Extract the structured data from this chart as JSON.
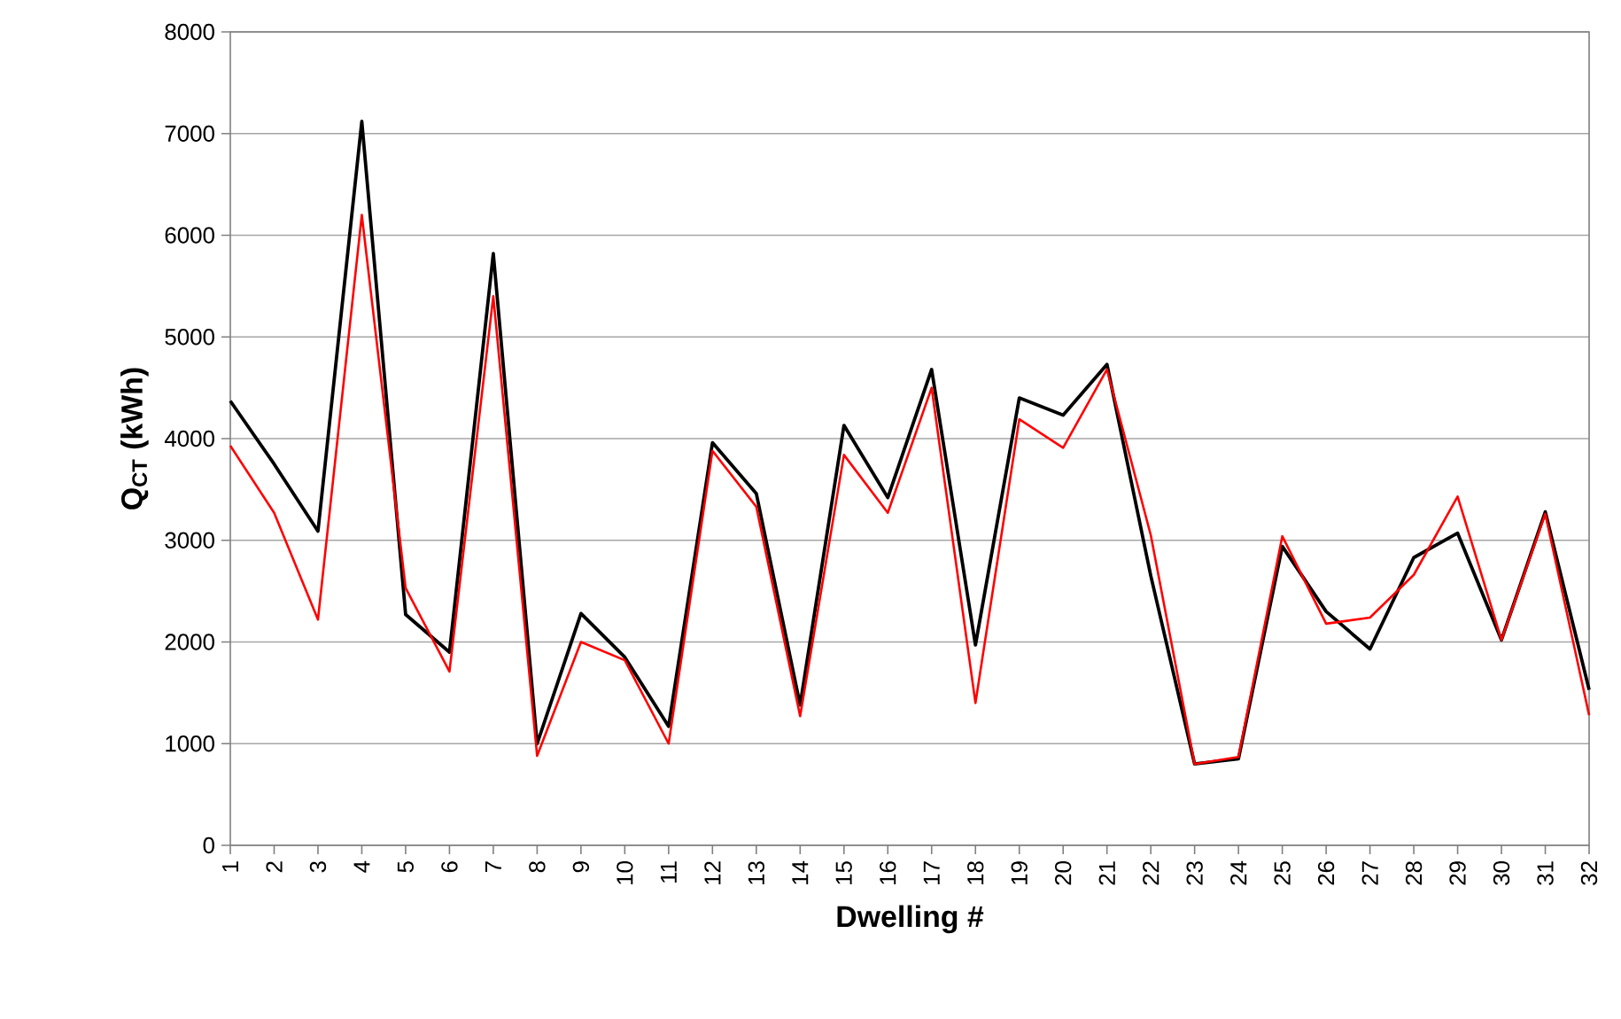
{
  "chart_data": {
    "type": "line",
    "xlabel": "Dwelling #",
    "ylabel": "Q$_{CT}$ (kWh)",
    "categories": [
      "1",
      "2",
      "3",
      "4",
      "5",
      "6",
      "7",
      "8",
      "9",
      "10",
      "11",
      "12",
      "13",
      "14",
      "15",
      "16",
      "17",
      "18",
      "19",
      "20",
      "21",
      "22",
      "23",
      "24",
      "25",
      "26",
      "27",
      "28",
      "29",
      "30",
      "31",
      "32"
    ],
    "series": [
      {
        "color": "#000000",
        "values": [
          4370,
          3750,
          3090,
          7120,
          2270,
          1900,
          5820,
          1000,
          2280,
          1850,
          1170,
          3960,
          3460,
          1380,
          4130,
          3420,
          4680,
          1970,
          4400,
          4230,
          4730,
          2650,
          800,
          850,
          2940,
          2300,
          1930,
          2830,
          3070,
          2020,
          3280,
          1530
        ]
      },
      {
        "color": "#ff0000",
        "values": [
          3930,
          3270,
          2220,
          6200,
          2530,
          1710,
          5400,
          880,
          2000,
          1820,
          1000,
          3880,
          3330,
          1270,
          3840,
          3270,
          4500,
          1400,
          4190,
          3910,
          4680,
          3050,
          800,
          870,
          3040,
          2180,
          2240,
          2660,
          3430,
          2020,
          3260,
          1280
        ]
      }
    ],
    "ylim": [
      0,
      8000
    ],
    "yticks": [
      0,
      1000,
      2000,
      3000,
      4000,
      5000,
      6000,
      7000,
      8000
    ],
    "grid": "y",
    "marker": "none",
    "line_style": "solid"
  }
}
